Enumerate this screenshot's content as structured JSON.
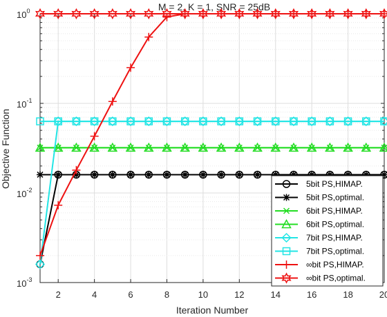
{
  "chart_data": {
    "type": "line",
    "title": "M = 2, K = 1, SNR = 25dB",
    "xlabel": "Iteration Number",
    "ylabel": "Objective Function",
    "x_scale": "linear",
    "y_scale": "log",
    "xlim": [
      1,
      20
    ],
    "ylim": [
      0.001,
      1
    ],
    "grid": true,
    "minor_grid": true,
    "legend_position": "bottom-right",
    "x_ticks": [
      2,
      4,
      6,
      8,
      10,
      12,
      14,
      16,
      18,
      20
    ],
    "x_tick_labels": [
      "2",
      "4",
      "6",
      "8",
      "10",
      "12",
      "14",
      "16",
      "18",
      "20"
    ],
    "y_ticks": [
      {
        "value": 0.001,
        "base": "10",
        "exp": "-3"
      },
      {
        "value": 0.01,
        "base": "10",
        "exp": "-2"
      },
      {
        "value": 0.1,
        "base": "10",
        "exp": "-1"
      },
      {
        "value": 1,
        "base": "10",
        "exp": "0"
      }
    ],
    "x": [
      1,
      2,
      3,
      4,
      5,
      6,
      7,
      8,
      9,
      10,
      11,
      12,
      13,
      14,
      15,
      16,
      17,
      18,
      19,
      20
    ],
    "series": [
      {
        "name": "5bit PS,HIMAP.",
        "color": "#000000",
        "marker": "circle",
        "values": [
          0.0016,
          0.016,
          0.016,
          0.016,
          0.016,
          0.016,
          0.016,
          0.016,
          0.016,
          0.016,
          0.016,
          0.016,
          0.016,
          0.016,
          0.016,
          0.016,
          0.016,
          0.016,
          0.016,
          0.016
        ]
      },
      {
        "name": "5bit PS,optimal.",
        "color": "#000000",
        "marker": "asterisk",
        "values": [
          0.016,
          0.016,
          0.016,
          0.016,
          0.016,
          0.016,
          0.016,
          0.016,
          0.016,
          0.016,
          0.016,
          0.016,
          0.016,
          0.016,
          0.016,
          0.016,
          0.016,
          0.016,
          0.016,
          0.016
        ]
      },
      {
        "name": "6bit PS,HIMAP.",
        "color": "#22dd22",
        "marker": "x",
        "values": [
          0.032,
          0.032,
          0.032,
          0.032,
          0.032,
          0.032,
          0.032,
          0.032,
          0.032,
          0.032,
          0.032,
          0.032,
          0.032,
          0.032,
          0.032,
          0.032,
          0.032,
          0.032,
          0.032,
          0.032
        ]
      },
      {
        "name": "6bit PS,optimal.",
        "color": "#22dd22",
        "marker": "triangle",
        "values": [
          0.032,
          0.032,
          0.032,
          0.032,
          0.032,
          0.032,
          0.032,
          0.032,
          0.032,
          0.032,
          0.032,
          0.032,
          0.032,
          0.032,
          0.032,
          0.032,
          0.032,
          0.032,
          0.032,
          0.032
        ]
      },
      {
        "name": "7bit PS,HIMAP.",
        "color": "#22e5e5",
        "marker": "diamond",
        "values": [
          0.0016,
          0.063,
          0.063,
          0.063,
          0.063,
          0.063,
          0.063,
          0.063,
          0.063,
          0.063,
          0.063,
          0.063,
          0.063,
          0.063,
          0.063,
          0.063,
          0.063,
          0.063,
          0.063,
          0.063
        ]
      },
      {
        "name": "7bit PS,optimal.",
        "color": "#22e5e5",
        "marker": "square",
        "values": [
          0.063,
          0.063,
          0.063,
          0.063,
          0.063,
          0.063,
          0.063,
          0.063,
          0.063,
          0.063,
          0.063,
          0.063,
          0.063,
          0.063,
          0.063,
          0.063,
          0.063,
          0.063,
          0.063,
          0.063
        ]
      },
      {
        "name": "∞bit PS,HIMAP.",
        "color": "#ee1111",
        "marker": "plus",
        "values": [
          0.002,
          0.0073,
          0.018,
          0.043,
          0.105,
          0.25,
          0.55,
          0.92,
          1,
          1,
          1,
          1,
          1,
          1,
          1,
          1,
          1,
          1,
          1,
          1
        ]
      },
      {
        "name": "∞bit PS,optimal.",
        "color": "#ee1111",
        "marker": "hexagram",
        "values": [
          1,
          1,
          1,
          1,
          1,
          1,
          1,
          1,
          1,
          1,
          1,
          1,
          1,
          1,
          1,
          1,
          1,
          1,
          1,
          1
        ]
      }
    ]
  }
}
